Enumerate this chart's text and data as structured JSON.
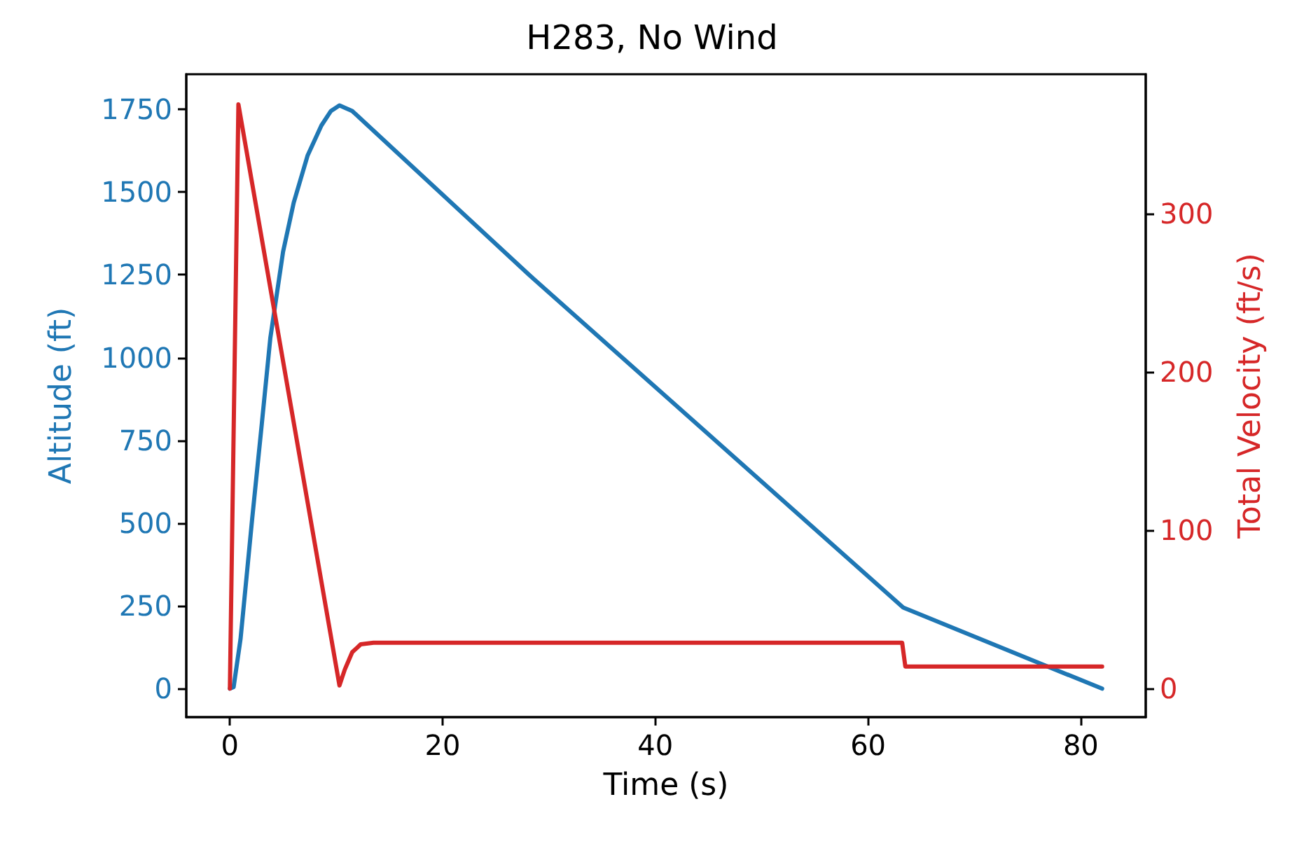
{
  "chart_data": {
    "type": "line",
    "title": "H283, No Wind",
    "xlabel": "Time (s)",
    "ylabel": "Altitude (ft)",
    "y2label": "Total Velocity (ft/s)",
    "xlim": [
      -4.1,
      86.1
    ],
    "xticks": [
      0,
      20,
      40,
      60,
      80
    ],
    "ylim": [
      -86,
      1856
    ],
    "yticks": [
      0,
      250,
      500,
      750,
      1000,
      1250,
      1500,
      1750
    ],
    "y2lim": [
      -18,
      388
    ],
    "y2ticks": [
      0,
      100,
      200,
      300
    ],
    "grid": false,
    "marker": "none",
    "line_style": "solid",
    "series": [
      {
        "color": "#1f77b4",
        "x": [
          0,
          0.35,
          1,
          2.1,
          3,
          3.8,
          5,
          6,
          7.3,
          8.6,
          9.5,
          10.3,
          11.5,
          28.1,
          63.3,
          82
        ],
        "values": [
          0,
          5,
          150,
          515,
          800,
          1059,
          1320,
          1468,
          1610,
          1701,
          1745,
          1762,
          1745,
          1251,
          245,
          0
        ]
      },
      {
        "color": "#d62728",
        "axis": "y2",
        "x": [
          0,
          0.8,
          10.3,
          10.8,
          11.5,
          12.3,
          13.5,
          63.2,
          63.5,
          82
        ],
        "values": [
          0,
          369,
          2,
          12,
          23,
          28,
          29,
          29,
          14,
          14
        ]
      }
    ]
  }
}
